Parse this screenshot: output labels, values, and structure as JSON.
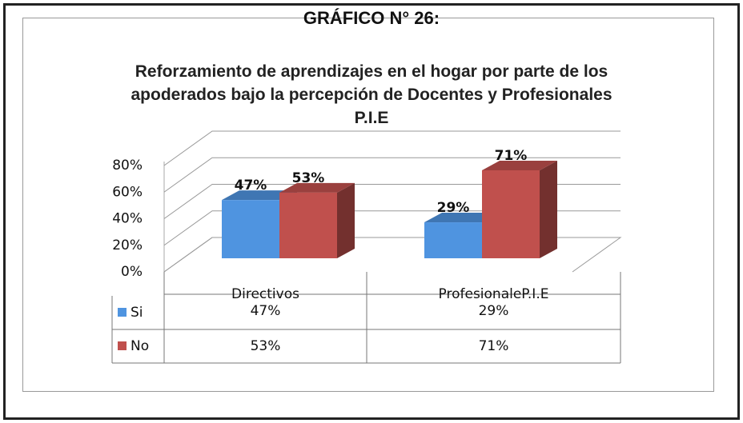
{
  "chart_data": {
    "type": "bar3d",
    "title": "GRÁFICO N° 26:",
    "subtitle": "Reforzamiento de aprendizajes en el hogar por parte de los apoderados bajo la percepción de Docentes y Profesionales P.I.E",
    "categories": [
      "Directivos",
      "ProfesionaleP.I.E"
    ],
    "series": [
      {
        "name": "Si",
        "color": "#4f94e0",
        "values": [
          47,
          29
        ],
        "value_labels": [
          "47%",
          "29%"
        ]
      },
      {
        "name": "No",
        "color": "#c0504d",
        "values": [
          53,
          71
        ],
        "value_labels": [
          "53%",
          "71%"
        ]
      }
    ],
    "ylim": [
      0,
      80
    ],
    "yticks": [
      {
        "value": 0,
        "label": "0%"
      },
      {
        "value": 20,
        "label": "20%"
      },
      {
        "value": 40,
        "label": "40%"
      },
      {
        "value": 60,
        "label": "60%"
      },
      {
        "value": 80,
        "label": "80%"
      }
    ],
    "grid": true,
    "data_table": true
  }
}
